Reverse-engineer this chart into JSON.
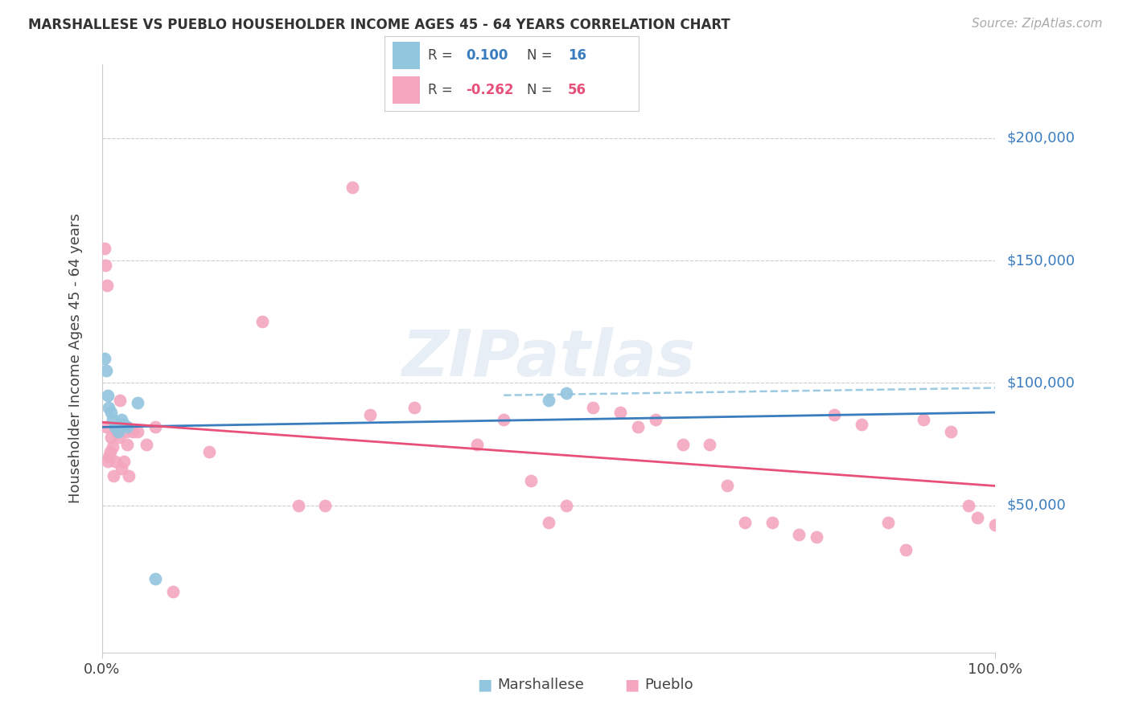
{
  "title": "MARSHALLESE VS PUEBLO HOUSEHOLDER INCOME AGES 45 - 64 YEARS CORRELATION CHART",
  "source": "Source: ZipAtlas.com",
  "ylabel": "Householder Income Ages 45 - 64 years",
  "xlim": [
    0.0,
    1.0
  ],
  "ylim": [
    -10000,
    230000
  ],
  "ytick_vals": [
    0,
    50000,
    100000,
    150000,
    200000
  ],
  "xtick_vals": [
    0.0,
    1.0
  ],
  "xtick_labels": [
    "0.0%",
    "100.0%"
  ],
  "marshallese_color": "#92c5de",
  "pueblo_color": "#f4a6bf",
  "marshallese_line_color": "#3a7dbf",
  "pueblo_line_color": "#e8507a",
  "dashed_line_color": "#92c5de",
  "right_label_color": "#3a7dbf",
  "background_color": "#ffffff",
  "marshallese_r": "0.100",
  "marshallese_n": "16",
  "pueblo_r": "-0.262",
  "pueblo_n": "56",
  "marshallese_x": [
    0.003,
    0.005,
    0.007,
    0.008,
    0.01,
    0.012,
    0.015,
    0.018,
    0.02,
    0.022,
    0.025,
    0.028,
    0.5,
    0.52,
    0.04,
    0.06
  ],
  "marshallese_y": [
    110000,
    105000,
    95000,
    90000,
    88000,
    85000,
    82000,
    80000,
    83000,
    85000,
    83000,
    82000,
    93000,
    96000,
    92000,
    20000
  ],
  "pueblo_x": [
    0.003,
    0.004,
    0.005,
    0.006,
    0.007,
    0.008,
    0.009,
    0.01,
    0.012,
    0.013,
    0.015,
    0.017,
    0.019,
    0.02,
    0.022,
    0.025,
    0.027,
    0.028,
    0.03,
    0.035,
    0.04,
    0.05,
    0.06,
    0.08,
    0.12,
    0.18,
    0.22,
    0.28,
    0.35,
    0.45,
    0.48,
    0.5,
    0.52,
    0.55,
    0.58,
    0.6,
    0.62,
    0.65,
    0.68,
    0.7,
    0.72,
    0.75,
    0.78,
    0.8,
    0.82,
    0.85,
    0.88,
    0.9,
    0.92,
    0.95,
    0.97,
    0.98,
    1.0,
    0.42,
    0.25,
    0.3
  ],
  "pueblo_y": [
    155000,
    148000,
    82000,
    140000,
    68000,
    70000,
    72000,
    78000,
    74000,
    62000,
    68000,
    80000,
    78000,
    93000,
    65000,
    68000,
    80000,
    75000,
    62000,
    80000,
    80000,
    75000,
    82000,
    15000,
    72000,
    125000,
    50000,
    180000,
    90000,
    85000,
    60000,
    43000,
    50000,
    90000,
    88000,
    82000,
    85000,
    75000,
    75000,
    58000,
    43000,
    43000,
    38000,
    37000,
    87000,
    83000,
    43000,
    32000,
    85000,
    80000,
    50000,
    45000,
    42000,
    75000,
    50000,
    87000
  ]
}
